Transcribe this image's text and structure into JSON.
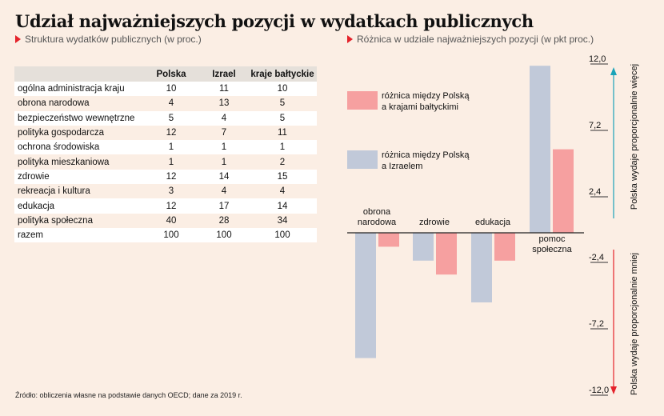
{
  "title": "Udział najważniejszych  pozycji w wydatkach publicznych",
  "left_subtitle": "Struktura wydatków publicznych (w proc.)",
  "right_subtitle": "Różnica w udziale najważniejszych pozycji (w pkt proc.)",
  "table": {
    "headers": [
      "",
      "Polska",
      "Izrael",
      "kraje bałtyckie"
    ],
    "rows": [
      [
        "ogólna administracja kraju",
        "10",
        "11",
        "10"
      ],
      [
        "obrona narodowa",
        "4",
        "13",
        "5"
      ],
      [
        "bezpieczeństwo wewnętrzne",
        "5",
        "4",
        "5"
      ],
      [
        "polityka gospodarcza",
        "12",
        "7",
        "11"
      ],
      [
        "ochrona środowiska",
        "1",
        "1",
        "1"
      ],
      [
        "polityka mieszkaniowa",
        "1",
        "1",
        "2"
      ],
      [
        "zdrowie",
        "12",
        "14",
        "15"
      ],
      [
        "rekreacja i kultura",
        "3",
        "4",
        "4"
      ],
      [
        "edukacja",
        "12",
        "17",
        "14"
      ],
      [
        "polityka społeczna",
        "40",
        "28",
        "34"
      ],
      [
        "razem",
        "100",
        "100",
        "100"
      ]
    ]
  },
  "source": "Źródło: obliczenia własne na podstawie danych OECD; dane za 2019 r.",
  "chart_data": {
    "type": "bar",
    "categories": [
      "obrona narodowa",
      "zdrowie",
      "edukacja",
      "pomoc społeczna"
    ],
    "series": [
      {
        "name": "różnica między Polską a Izraelem",
        "values": [
          -9,
          -2,
          -5,
          12
        ],
        "color": "#c1c9d9"
      },
      {
        "name": "różnica między Polską a krajami bałtyckimi",
        "values": [
          -1,
          -3,
          -2,
          6
        ],
        "color": "#f6a0a0"
      }
    ],
    "yticks": [
      "12,0",
      "7,2",
      "2,4",
      "-2,4",
      "-7,2",
      "-12,0"
    ],
    "ylim": [
      -12,
      12
    ],
    "axis_up_label": "Polska wydaje proporcjonalnie więcej",
    "axis_down_label": "Polska wydaje proporcjonalnie mniej",
    "legend_position": "top-left",
    "up_arrow_color": "#1aa3b8",
    "down_arrow_color": "#e4232b"
  }
}
